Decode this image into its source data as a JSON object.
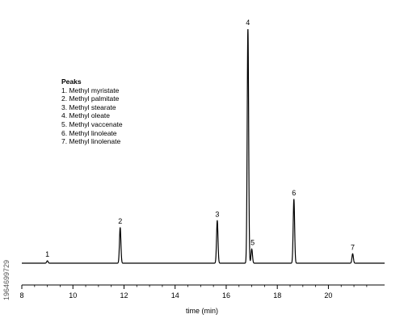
{
  "chart_data": {
    "type": "line",
    "xlabel": "time (min)",
    "ylabel": "",
    "xlim": [
      8,
      22.2
    ],
    "ylim": [
      0,
      1
    ],
    "x_ticks": [
      8,
      10,
      12,
      14,
      16,
      18,
      20
    ],
    "baseline": 0.0,
    "peaks": [
      {
        "label": "1",
        "time": 9.0,
        "height": 0.01
      },
      {
        "label": "2",
        "time": 11.85,
        "height": 0.15
      },
      {
        "label": "3",
        "time": 15.65,
        "height": 0.18
      },
      {
        "label": "4",
        "time": 16.85,
        "height": 0.99
      },
      {
        "label": "5",
        "time": 17.0,
        "height": 0.06
      },
      {
        "label": "6",
        "time": 18.65,
        "height": 0.27
      },
      {
        "label": "7",
        "time": 20.95,
        "height": 0.04
      }
    ],
    "grid": false,
    "legend_placement": "top-left"
  },
  "legend": {
    "title": "Peaks",
    "items": [
      "1. Methyl myristate",
      "2. Methyl palmitate",
      "3. Methyl stearate",
      "4. Methyl oleate",
      "5. Methyl vaccenate",
      "6. Methyl linoleate",
      "7. Methyl linolenate"
    ]
  },
  "watermark": {
    "id_text": "1964699729"
  }
}
